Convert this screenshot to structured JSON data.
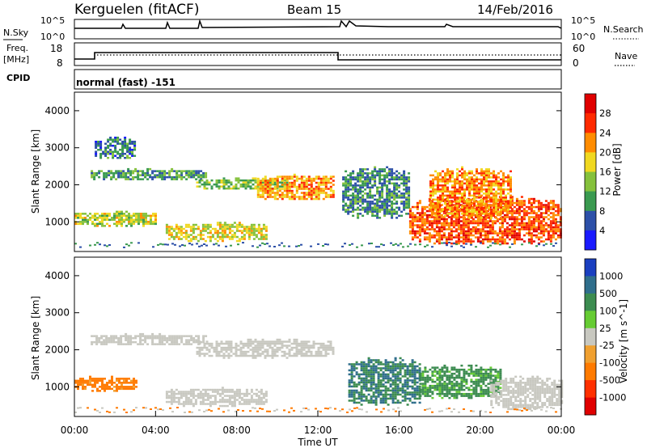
{
  "header": {
    "station": "Kerguelen (fitACF)",
    "beam": "Beam 15",
    "date": "14/Feb/2016"
  },
  "nsky_panel": {
    "left_label": "N.Sky",
    "right_label": "N.Search",
    "left_ticks": [
      "10^5",
      "10^0"
    ],
    "right_ticks": [
      "10^5",
      "10^0"
    ]
  },
  "freq_panel": {
    "left_label_1": "Freq.",
    "left_label_2": "[MHz]",
    "left_ticks": [
      "18",
      "8"
    ],
    "right_ticks": [
      "60",
      "0"
    ],
    "right_label": "Nave"
  },
  "cpid_panel": {
    "label": "CPID",
    "mode": "normal (fast) -151"
  },
  "chart_data": [
    {
      "type": "heatmap",
      "title": "",
      "xlabel": "",
      "ylabel": "Slant Range [km]",
      "x_range": [
        "00:00",
        "24:00"
      ],
      "ylim": [
        200,
        4500
      ],
      "yticks": [
        "4000",
        "3000",
        "2000",
        "1000"
      ],
      "colorbar_label": "Power [dB]",
      "colorbar_ticks": [
        "28",
        "24",
        "20",
        "16",
        "12",
        "8",
        "4"
      ],
      "colorbar_colors": [
        "#1a1aff",
        "#2d50a8",
        "#3a9a50",
        "#85c13c",
        "#f0d820",
        "#ff8c00",
        "#ff2a00",
        "#e00000"
      ],
      "regions": [
        {
          "t0": 0.8,
          "t1": 6.5,
          "r0": 2150,
          "r1": 2450,
          "value": 10
        },
        {
          "t0": 1.0,
          "t1": 3.0,
          "r0": 2700,
          "r1": 3300,
          "value": 8
        },
        {
          "t0": 6.0,
          "t1": 10.5,
          "r0": 1900,
          "r1": 2200,
          "value": 13
        },
        {
          "t0": 9.0,
          "t1": 12.8,
          "r0": 1600,
          "r1": 2300,
          "value": 21
        },
        {
          "t0": 0.0,
          "t1": 4.0,
          "r0": 900,
          "r1": 1300,
          "value": 16
        },
        {
          "t0": 4.5,
          "t1": 9.5,
          "r0": 500,
          "r1": 1000,
          "value": 17
        },
        {
          "t0": 13.2,
          "t1": 16.5,
          "r0": 1100,
          "r1": 2500,
          "value": 9
        },
        {
          "t0": 16.5,
          "t1": 24.0,
          "r0": 400,
          "r1": 1700,
          "value": 25
        },
        {
          "t0": 17.5,
          "t1": 21.5,
          "r0": 1100,
          "r1": 2500,
          "value": 22
        }
      ]
    },
    {
      "type": "heatmap",
      "title": "",
      "xlabel": "Time UT",
      "ylabel": "Slant Range [km]",
      "x_range": [
        "00:00",
        "24:00"
      ],
      "ylim": [
        200,
        4500
      ],
      "yticks": [
        "4000",
        "3000",
        "2000",
        "1000"
      ],
      "xticks": [
        "00:00",
        "04:00",
        "08:00",
        "12:00",
        "16:00",
        "20:00",
        "00:00"
      ],
      "colorbar_label": "Velocity [m s^-1]",
      "colorbar_ticks": [
        "1000",
        "500",
        "100",
        "25",
        "-25",
        "-100",
        "-500",
        "-1000"
      ],
      "colorbar_colors": [
        "#1a3fc0",
        "#2f6e8c",
        "#3c8c50",
        "#66cc33",
        "#c8c8c0",
        "#f0a030",
        "#ff7a00",
        "#ff3000",
        "#e00000"
      ],
      "regions": [
        {
          "t0": 0.8,
          "t1": 6.5,
          "r0": 2150,
          "r1": 2450,
          "value": 0
        },
        {
          "t0": 6.0,
          "t1": 12.8,
          "r0": 1800,
          "r1": 2300,
          "value": 0
        },
        {
          "t0": 0.0,
          "t1": 3.0,
          "r0": 900,
          "r1": 1300,
          "value": -100
        },
        {
          "t0": 4.5,
          "t1": 9.5,
          "r0": 500,
          "r1": 1000,
          "value": 0
        },
        {
          "t0": 13.5,
          "t1": 17.0,
          "r0": 500,
          "r1": 1800,
          "value": 300
        },
        {
          "t0": 17.0,
          "t1": 21.0,
          "r0": 700,
          "r1": 1600,
          "value": 90
        },
        {
          "t0": 20.5,
          "t1": 24.0,
          "r0": 400,
          "r1": 1300,
          "value": 0
        }
      ]
    }
  ]
}
